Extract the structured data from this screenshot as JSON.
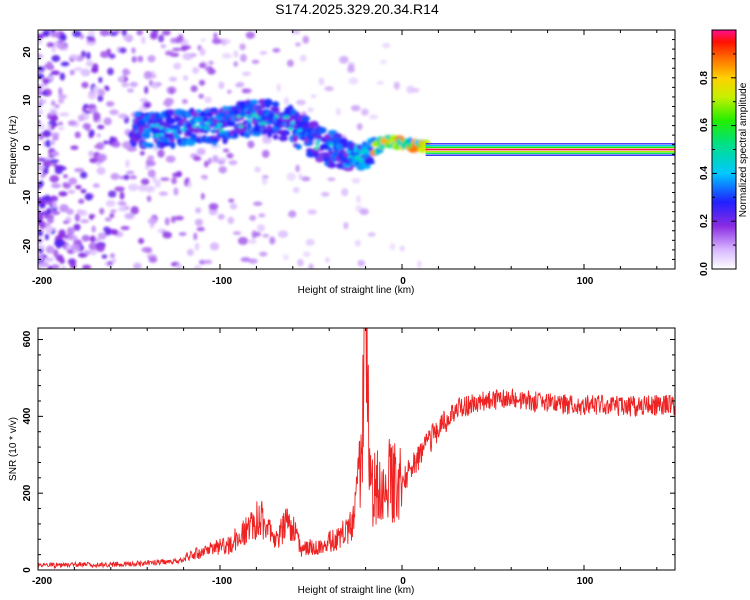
{
  "title": "S174.2025.329.20.34.R14",
  "chart_data": [
    {
      "type": "heatmap",
      "xlabel": "Height of straight line (km)",
      "ylabel": "Frequency (Hz)",
      "xlim": [
        -200,
        150
      ],
      "ylim": [
        -25,
        25
      ],
      "xticks": [
        "-200",
        "-100",
        "0",
        "100"
      ],
      "yticks": [
        "-20",
        "-10",
        "0",
        "10",
        "20"
      ],
      "ridge": {
        "description_points_km_hz": [
          [
            -145,
            4
          ],
          [
            -120,
            4.5
          ],
          [
            -100,
            5
          ],
          [
            -80,
            7
          ],
          [
            -60,
            5
          ],
          [
            -45,
            1
          ],
          [
            -30,
            -1
          ],
          [
            -20,
            -1.5
          ],
          [
            -15,
            0
          ],
          [
            -10,
            1.5
          ],
          [
            -5,
            2
          ],
          [
            0,
            1.5
          ],
          [
            10,
            0.5
          ],
          [
            15,
            0
          ],
          [
            150,
            0
          ]
        ]
      },
      "colorbar": {
        "label": "Normalized spectral amplitude",
        "range": [
          0,
          1
        ],
        "ticks": [
          "0.0",
          "0.2",
          "0.4",
          "0.6",
          "0.8"
        ]
      }
    },
    {
      "type": "line",
      "xlabel": "Height of straight line (km)",
      "ylabel": "SNR (10 * v/v)",
      "xlim": [
        -200,
        150
      ],
      "ylim": [
        0,
        630
      ],
      "xticks": [
        "-200",
        "-100",
        "0",
        "100"
      ],
      "yticks": [
        "0",
        "200",
        "400",
        "600"
      ],
      "color": "#ee2222",
      "envelope_points": [
        {
          "x": -200,
          "y": 12
        },
        {
          "x": -150,
          "y": 15
        },
        {
          "x": -120,
          "y": 25
        },
        {
          "x": -110,
          "y": 40
        },
        {
          "x": -95,
          "y": 55
        },
        {
          "x": -85,
          "y": 90
        },
        {
          "x": -78,
          "y": 120
        },
        {
          "x": -70,
          "y": 60
        },
        {
          "x": -62,
          "y": 110
        },
        {
          "x": -55,
          "y": 45
        },
        {
          "x": -45,
          "y": 55
        },
        {
          "x": -35,
          "y": 70
        },
        {
          "x": -27,
          "y": 100
        },
        {
          "x": -22,
          "y": 250
        },
        {
          "x": -20,
          "y": 630
        },
        {
          "x": -17,
          "y": 180
        },
        {
          "x": -12,
          "y": 230
        },
        {
          "x": -5,
          "y": 220
        },
        {
          "x": 0,
          "y": 230
        },
        {
          "x": 10,
          "y": 300
        },
        {
          "x": 20,
          "y": 370
        },
        {
          "x": 30,
          "y": 420
        },
        {
          "x": 45,
          "y": 440
        },
        {
          "x": 60,
          "y": 445
        },
        {
          "x": 80,
          "y": 435
        },
        {
          "x": 100,
          "y": 430
        },
        {
          "x": 120,
          "y": 425
        },
        {
          "x": 150,
          "y": 430
        }
      ]
    }
  ]
}
